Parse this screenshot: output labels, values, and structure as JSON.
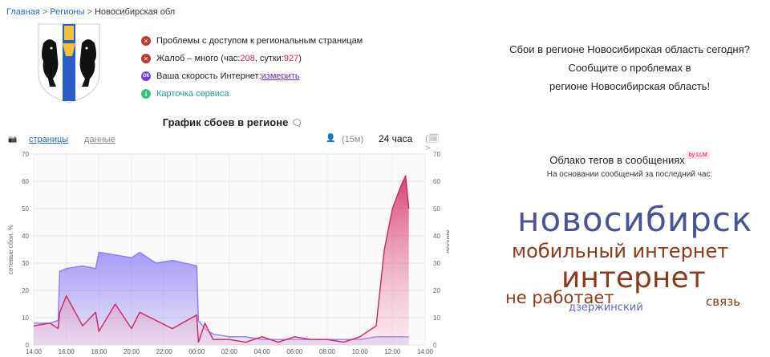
{
  "breadcrumb": {
    "home": "Главная",
    "regions": "Регионы",
    "current": "Новосибирская обл"
  },
  "status": {
    "access_problems": "Проблемы с доступом к региональным страницам",
    "complaints_prefix": "Жалоб – много (час: ",
    "complaints_hour": "208",
    "complaints_mid": ", сутки: ",
    "complaints_day": "927",
    "complaints_suffix": ")",
    "speed_label": "Ваша скорость Интернет: ",
    "speed_link": "измерить",
    "service_card": "Карточка сервиса",
    "icon_red": "✕",
    "icon_purple": "ОК",
    "icon_green": "i"
  },
  "cta": {
    "line1": "Сбои в регионе Новосибирская область сегодня?",
    "line2": "Сообщите о проблемах в",
    "line3": "регионе Новосибирская область!"
  },
  "chart_header": {
    "title": "График сбоев в регионе",
    "comment_icon": "🗨",
    "tab_pages": "страницы",
    "tab_data": "данные",
    "range_15m": "(15м)",
    "range_24h": "24 часа",
    "user_icon": "👤",
    "camera_icon": "📷",
    "calendar_icon": "(🗓>"
  },
  "chart_data": {
    "type": "area",
    "ylabel_left": "сетевые сбои, %",
    "ylabel_right": "жалобы",
    "ylim": [
      0,
      70
    ],
    "yticks": [
      0,
      10,
      20,
      30,
      40,
      50,
      60,
      70
    ],
    "xticks": [
      "14:00",
      "16:00",
      "18:00",
      "20:00",
      "22:00",
      "00:00",
      "02:00",
      "04:00",
      "06:00",
      "08:00",
      "10:00",
      "12:00",
      "14:00"
    ],
    "x_hours": [
      0,
      1,
      1.5,
      1.6,
      2,
      3,
      3.8,
      4,
      5,
      6,
      6.5,
      7.5,
      8.5,
      10,
      10.1,
      10.5,
      11,
      12,
      13,
      14,
      15,
      16,
      17,
      18,
      19,
      20,
      21,
      21.5,
      22,
      22.5,
      22.8,
      23
    ],
    "series": [
      {
        "name": "",
        "color": "#8b7cf6",
        "values": [
          8,
          8,
          9,
          27,
          28,
          29,
          28,
          34,
          33,
          32,
          34,
          30,
          31,
          29,
          9,
          6,
          4,
          3,
          3,
          2,
          2,
          2,
          2,
          2,
          2,
          2,
          3,
          3,
          3,
          3,
          3,
          3
        ]
      },
      {
        "name": "",
        "color": "#d0245a",
        "values": [
          7,
          8,
          6,
          12,
          18,
          7,
          12,
          5,
          15,
          6,
          12,
          9,
          6,
          11,
          1,
          8,
          2,
          2,
          1,
          3,
          1,
          3,
          2,
          2,
          1,
          3,
          7,
          35,
          50,
          58,
          62,
          50
        ]
      }
    ]
  },
  "cloud": {
    "title": "Облако тегов в сообщениях",
    "badge": "by LLM",
    "subtitle": "На основании сообщений за последний час:",
    "words": [
      {
        "text": "новосибирск",
        "color": "#4a5394"
      },
      {
        "text": "мобильный интернет",
        "color": "#8b3a1c"
      },
      {
        "text": "интернет",
        "color": "#8b3a1c"
      },
      {
        "text": "не работает",
        "color": "#8b3a1c"
      },
      {
        "text": "связь",
        "color": "#8b3a1c"
      },
      {
        "text": "дзержинский",
        "color": "#5b6bb0"
      }
    ]
  }
}
